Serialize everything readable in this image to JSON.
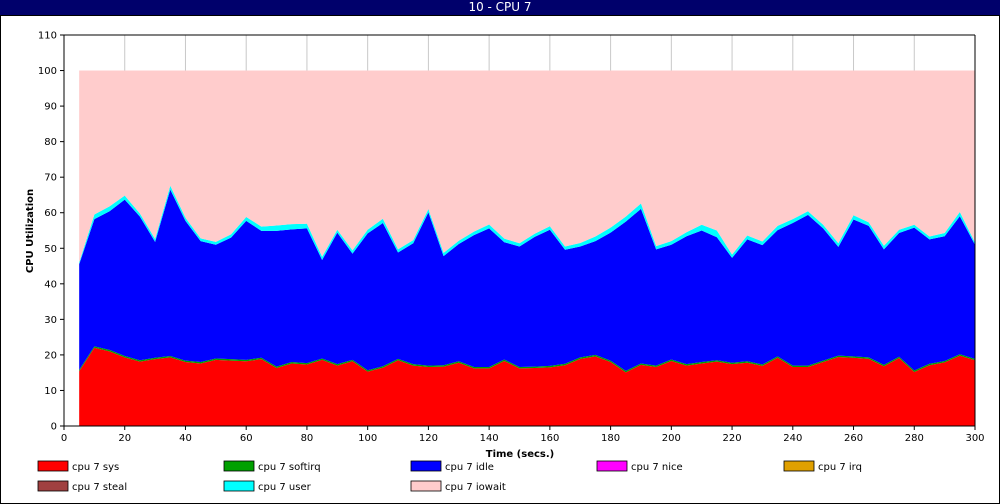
{
  "window": {
    "title": "10 - CPU 7"
  },
  "chart_data": {
    "type": "area",
    "stacked": true,
    "xlabel": "Time (secs.)",
    "ylabel": "CPU Utilization",
    "xlim": [
      0,
      300
    ],
    "ylim": [
      0,
      110
    ],
    "x_ticks": [
      0,
      20,
      40,
      60,
      80,
      100,
      120,
      140,
      160,
      180,
      200,
      220,
      240,
      260,
      280,
      300
    ],
    "y_ticks": [
      0,
      10,
      20,
      30,
      40,
      50,
      60,
      70,
      80,
      90,
      100,
      110
    ],
    "grid": "vertical",
    "legend_position": "bottom",
    "x": [
      5,
      10,
      15,
      20,
      25,
      30,
      35,
      40,
      45,
      50,
      55,
      60,
      65,
      70,
      75,
      80,
      85,
      90,
      95,
      100,
      105,
      110,
      115,
      120,
      125,
      130,
      135,
      140,
      145,
      150,
      155,
      160,
      165,
      170,
      175,
      180,
      185,
      190,
      195,
      200,
      205,
      210,
      215,
      220,
      225,
      230,
      235,
      240,
      245,
      250,
      255,
      260,
      265,
      270,
      275,
      280,
      285,
      290,
      295,
      300
    ],
    "series": [
      {
        "name": "cpu 7 sys",
        "color": "#ff0000",
        "values": [
          15.4,
          22.0,
          21.0,
          19.3,
          18.1,
          18.8,
          19.3,
          18.0,
          17.6,
          18.6,
          18.4,
          18.2,
          18.8,
          16.3,
          17.6,
          17.3,
          18.6,
          17.0,
          18.2,
          15.3,
          16.4,
          18.5,
          17.0,
          16.6,
          16.7,
          17.8,
          16.2,
          16.2,
          18.3,
          16.2,
          16.3,
          16.5,
          17.1,
          18.9,
          19.6,
          18.0,
          15.1,
          17.2,
          16.6,
          18.3,
          17.0,
          17.6,
          18.1,
          17.4,
          17.8,
          16.9,
          19.2,
          16.6,
          16.6,
          18.0,
          19.4,
          19.2,
          18.9,
          16.8,
          19.1,
          15.2,
          17.1,
          17.9,
          19.8,
          18.5
        ]
      },
      {
        "name": "cpu 7 softirq",
        "color": "#00a000",
        "values": [
          0.4,
          0.4,
          0.4,
          0.4,
          0.4,
          0.4,
          0.4,
          0.4,
          0.4,
          0.4,
          0.4,
          0.4,
          0.4,
          0.4,
          0.4,
          0.4,
          0.4,
          0.4,
          0.4,
          0.4,
          0.4,
          0.4,
          0.4,
          0.4,
          0.4,
          0.4,
          0.4,
          0.4,
          0.4,
          0.4,
          0.4,
          0.4,
          0.4,
          0.4,
          0.4,
          0.4,
          0.4,
          0.4,
          0.4,
          0.4,
          0.4,
          0.4,
          0.4,
          0.4,
          0.4,
          0.4,
          0.4,
          0.4,
          0.4,
          0.4,
          0.4,
          0.4,
          0.4,
          0.4,
          0.4,
          0.4,
          0.4,
          0.4,
          0.4,
          0.4
        ]
      },
      {
        "name": "cpu 7 idle",
        "color": "#0000ff",
        "values": [
          29.7,
          35.8,
          39.0,
          44.0,
          40.4,
          32.6,
          46.8,
          39.3,
          34.0,
          32.0,
          34.2,
          39.1,
          35.7,
          38.2,
          37.3,
          37.9,
          27.7,
          37.0,
          29.9,
          38.5,
          40.3,
          29.9,
          34.0,
          43.1,
          30.7,
          33.0,
          37.1,
          39.0,
          33.0,
          33.9,
          36.5,
          38.3,
          32.1,
          31.2,
          32.0,
          36.0,
          42.0,
          43.5,
          32.7,
          32.3,
          36.0,
          37.0,
          34.6,
          29.5,
          34.3,
          33.6,
          35.5,
          40.1,
          42.4,
          37.2,
          30.6,
          38.5,
          37.0,
          32.5,
          34.8,
          40.2,
          35.0,
          35.1,
          38.8,
          32.1
        ]
      },
      {
        "name": "cpu 7 nice",
        "color": "#ff00ff",
        "values": [
          0,
          0,
          0,
          0,
          0,
          0,
          0,
          0,
          0,
          0,
          0,
          0,
          0,
          0,
          0,
          0,
          0,
          0,
          0,
          0,
          0,
          0,
          0,
          0,
          0,
          0,
          0,
          0,
          0,
          0,
          0,
          0,
          0,
          0,
          0,
          0,
          0,
          0,
          0,
          0,
          0,
          0,
          0,
          0,
          0,
          0,
          0,
          0,
          0,
          0,
          0,
          0,
          0,
          0,
          0,
          0,
          0,
          0,
          0,
          0
        ]
      },
      {
        "name": "cpu 7 irq",
        "color": "#e0a000",
        "values": [
          0,
          0,
          0,
          0,
          0,
          0,
          0,
          0,
          0,
          0,
          0,
          0,
          0,
          0,
          0,
          0,
          0,
          0,
          0,
          0,
          0,
          0,
          0,
          0,
          0,
          0,
          0,
          0,
          0,
          0,
          0,
          0,
          0,
          0,
          0,
          0,
          0,
          0,
          0,
          0,
          0,
          0,
          0,
          0,
          0,
          0,
          0,
          0,
          0,
          0,
          0,
          0,
          0,
          0,
          0,
          0,
          0,
          0,
          0,
          0
        ]
      },
      {
        "name": "cpu 7 steal",
        "color": "#a04040",
        "values": [
          0,
          0,
          0,
          0,
          0,
          0,
          0,
          0,
          0,
          0,
          0,
          0,
          0,
          0,
          0,
          0,
          0,
          0,
          0,
          0,
          0,
          0,
          0,
          0,
          0,
          0,
          0,
          0,
          0,
          0,
          0,
          0,
          0,
          0,
          0,
          0,
          0,
          0,
          0,
          0,
          0,
          0,
          0,
          0,
          0,
          0,
          0,
          0,
          0,
          0,
          0,
          0,
          0,
          0,
          0,
          0,
          0,
          0,
          0,
          0
        ]
      },
      {
        "name": "cpu 7 user",
        "color": "#00ffff",
        "values": [
          0.5,
          1.3,
          1.4,
          1.1,
          0.9,
          0.8,
          1.1,
          0.9,
          0.8,
          0.8,
          0.9,
          1.1,
          1.2,
          1.5,
          1.5,
          1.3,
          0.9,
          0.8,
          0.9,
          1.0,
          1.2,
          0.9,
          0.9,
          0.9,
          0.9,
          0.9,
          1.0,
          1.1,
          1.0,
          0.9,
          0.9,
          1.0,
          0.9,
          1.0,
          1.3,
          1.4,
          1.4,
          1.5,
          0.9,
          1.0,
          1.1,
          1.6,
          1.9,
          0.9,
          1.1,
          1.0,
          1.2,
          1.1,
          1.0,
          1.0,
          1.0,
          1.2,
          1.0,
          1.0,
          0.9,
          0.8,
          0.8,
          0.9,
          1.2,
          0.6
        ]
      },
      {
        "name": "cpu 7 iowait",
        "color": "#ffcccc",
        "values": [
          54.0,
          40.5,
          38.2,
          35.2,
          40.2,
          47.4,
          32.4,
          41.4,
          47.2,
          48.2,
          46.1,
          41.2,
          43.9,
          43.6,
          43.2,
          43.1,
          52.4,
          44.8,
          50.6,
          44.8,
          41.7,
          50.3,
          47.7,
          39.0,
          51.3,
          47.9,
          45.3,
          43.3,
          47.3,
          48.6,
          45.9,
          43.8,
          49.5,
          48.5,
          46.7,
          44.2,
          41.1,
          37.4,
          49.4,
          48.0,
          45.5,
          43.4,
          45.0,
          51.8,
          46.4,
          48.1,
          43.7,
          41.8,
          39.6,
          43.4,
          48.6,
          40.7,
          42.7,
          49.3,
          44.8,
          43.4,
          46.7,
          45.7,
          39.8,
          48.4
        ]
      }
    ]
  }
}
